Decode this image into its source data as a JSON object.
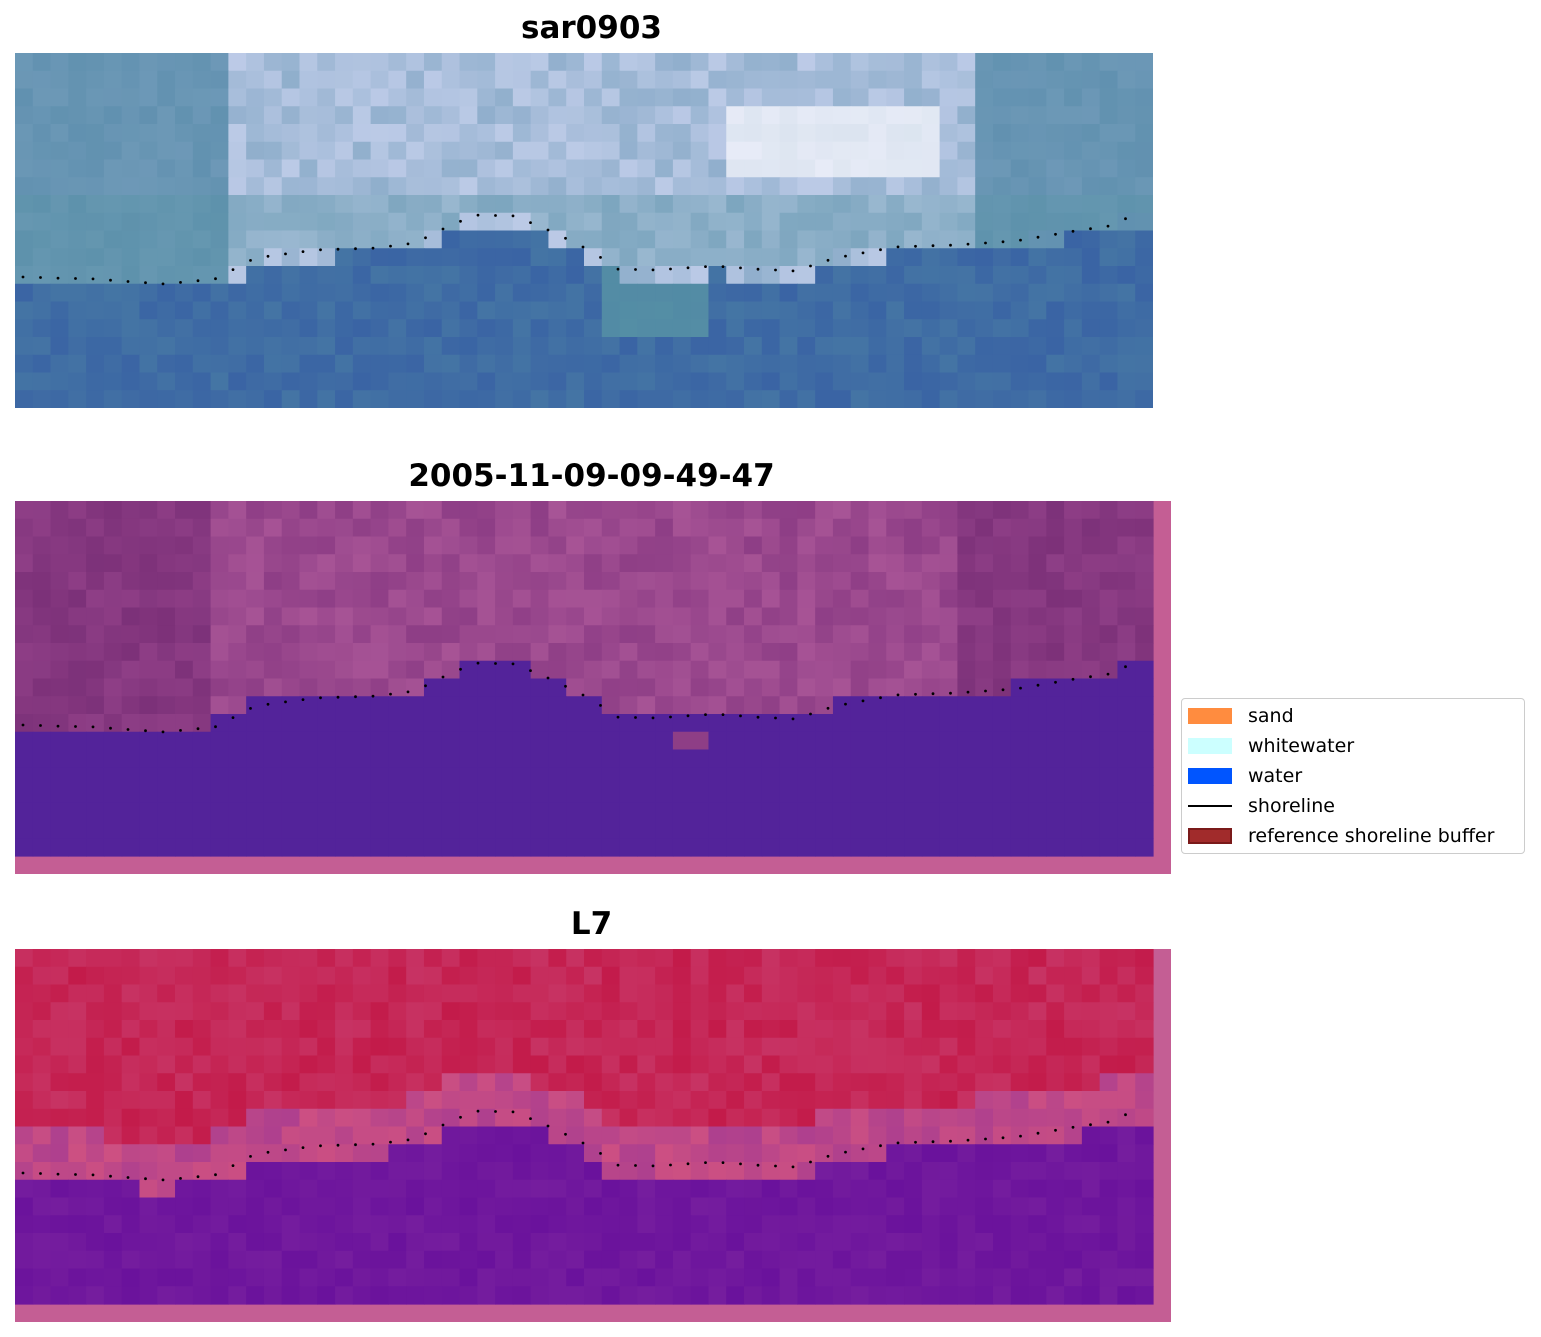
{
  "panels": [
    {
      "id": "rgb",
      "title": "sar0903"
    },
    {
      "id": "classified",
      "title": "2005-11-09-09-49-47"
    },
    {
      "id": "index",
      "title": "L7"
    }
  ],
  "legend": {
    "items": [
      {
        "label": "sand",
        "kind": "patch",
        "color": "#ff8c3f"
      },
      {
        "label": "whitewater",
        "kind": "patch",
        "color": "#ccffff"
      },
      {
        "label": "water",
        "kind": "patch",
        "color": "#0055ff"
      },
      {
        "label": "shoreline",
        "kind": "line",
        "color": "#000000"
      },
      {
        "label": "reference shoreline buffer",
        "kind": "patch",
        "color": "#a12b2b",
        "edge": "#7a1a1a"
      }
    ]
  },
  "colors": {
    "rgb_water": "#3a64a4",
    "rgb_cloud": "#c8d2ee",
    "classified_land": "#8e3e86",
    "classified_water": "#53239a",
    "classified_border": "#c45e94",
    "index_land": "#c31b4a",
    "index_water": "#6a129c",
    "shoreline": "#000000"
  }
}
